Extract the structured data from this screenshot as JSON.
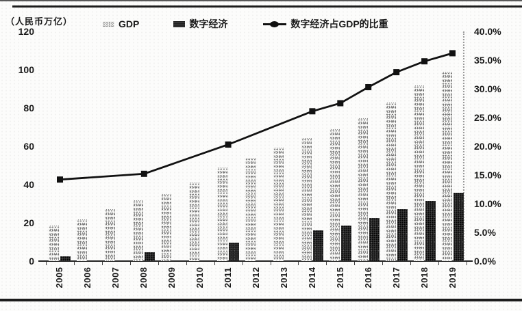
{
  "colors": {
    "ink": "#1a1a1a",
    "line": "#111111",
    "bar_gdp_texture": "#8c8c8c",
    "bar_digital": "#3e3e3e",
    "background": "#fcfcfb"
  },
  "chart_data": {
    "type": "bar",
    "combo": "dual-axis bars + line",
    "title": "",
    "unit_label": "（人民币万亿）",
    "categories": [
      "2005",
      "2006",
      "2007",
      "2008",
      "2009",
      "2010",
      "2011",
      "2012",
      "2013",
      "2014",
      "2015",
      "2016",
      "2017",
      "2018",
      "2019"
    ],
    "series": [
      {
        "name": "GDP",
        "type": "bar",
        "axis": "left",
        "values": [
          18.7,
          21.9,
          27.0,
          31.9,
          34.9,
          41.2,
          48.8,
          53.9,
          59.3,
          64.4,
          68.9,
          74.6,
          82.7,
          91.9,
          99.1
        ]
      },
      {
        "name": "数字经济",
        "type": "bar",
        "axis": "left",
        "values": [
          2.6,
          null,
          null,
          4.8,
          null,
          null,
          9.5,
          null,
          null,
          16.2,
          18.6,
          22.6,
          27.2,
          31.3,
          35.8
        ]
      },
      {
        "name": "数字经济占GDP的比重",
        "type": "line",
        "axis": "right",
        "values": [
          14.2,
          null,
          null,
          15.2,
          null,
          null,
          20.3,
          null,
          null,
          26.1,
          27.5,
          30.3,
          32.9,
          34.8,
          36.2
        ]
      }
    ],
    "left_axis": {
      "min": 0,
      "max": 120,
      "step": 20,
      "ticks": [
        0,
        20,
        40,
        60,
        80,
        100,
        120
      ]
    },
    "right_axis": {
      "min": 0,
      "max": 40,
      "step": 5,
      "tick_labels": [
        "0.0%",
        "5.0%",
        "10.0%",
        "15.0%",
        "20.0%",
        "25.0%",
        "30.0%",
        "35.0%",
        "40.0%"
      ]
    },
    "grid": false,
    "legend_position": "top"
  }
}
